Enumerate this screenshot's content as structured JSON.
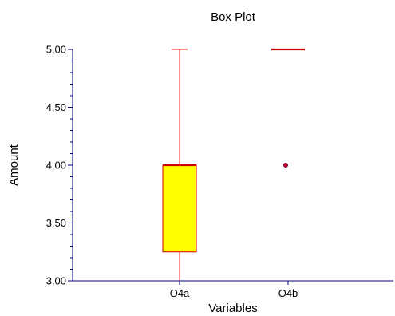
{
  "chart_data": {
    "type": "box",
    "title": "Box Plot",
    "xlabel": "Variables",
    "ylabel": "Amount",
    "ylim": [
      3.0,
      5.0
    ],
    "yticks": [
      {
        "value": 3.0,
        "label": "3,00"
      },
      {
        "value": 3.5,
        "label": "3,50"
      },
      {
        "value": 4.0,
        "label": "4,00"
      },
      {
        "value": 4.5,
        "label": "4,50"
      },
      {
        "value": 5.0,
        "label": "5,00"
      }
    ],
    "categories": [
      "O4a",
      "O4b"
    ],
    "boxes": [
      {
        "category": "O4a",
        "min": 3.0,
        "q1": 3.25,
        "median": 4.0,
        "q3": 4.0,
        "max": 5.0,
        "outliers": []
      },
      {
        "category": "O4b",
        "min": 5.0,
        "q1": 5.0,
        "median": 5.0,
        "q3": 5.0,
        "max": 5.0,
        "outliers": [
          4.0
        ]
      }
    ],
    "colors": {
      "box_fill": "#ffff00",
      "box_stroke": "#cc0000",
      "whisker": "#ff4d4d",
      "median": "#cc0000",
      "outlier_fill": "#cc0033",
      "outlier_stroke": "#660033",
      "axis": "#000080"
    },
    "grid": false,
    "legend": false
  }
}
